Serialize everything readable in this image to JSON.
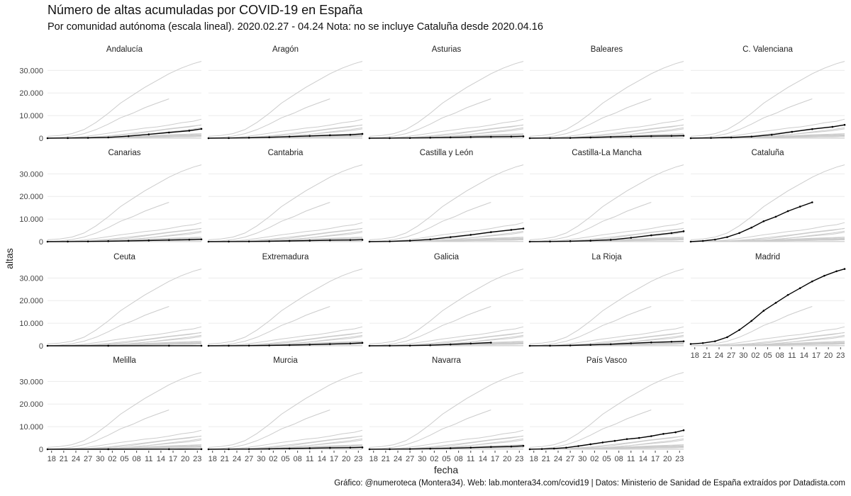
{
  "header": {
    "title": "Número de altas acumuladas por COVID-19 en España",
    "subtitle": "Por comunidad autónoma (escala lineal). 2020.02.27 - 04.24 Nota: no se incluye Cataluña desde 2020.04.16",
    "caption": "Gráfico: @numeroteca (Montera34). Web: lab.montera34.com/covid19 | Datos: Ministerio de Sanidad de España extraídos por Datadista.com"
  },
  "chart_data": {
    "type": "line",
    "title": "Número de altas acumuladas por COVID-19 en España",
    "xlabel": "fecha",
    "ylabel": "altas",
    "x_start": "2020-03-17",
    "x_end": "2020-04-24",
    "x_tick_dates": [
      "2020-03-18",
      "2020-03-21",
      "2020-03-24",
      "2020-03-27",
      "2020-03-30",
      "2020-04-02",
      "2020-04-05",
      "2020-04-08",
      "2020-04-11",
      "2020-04-14",
      "2020-04-17",
      "2020-04-20",
      "2020-04-23"
    ],
    "x_tick_labels": [
      "18",
      "21",
      "24",
      "27",
      "30",
      "02",
      "05",
      "08",
      "11",
      "14",
      "17",
      "20",
      "23"
    ],
    "ylim": [
      0,
      34500
    ],
    "y_ticks": [
      0,
      10000,
      20000,
      30000
    ],
    "y_tick_labels": [
      "0",
      "10.000",
      "20.000",
      "30.000"
    ],
    "grid": true,
    "highlight_color": "#000000",
    "background_color": "#cccccc",
    "series": [
      {
        "name": "Andalucía",
        "dates": [
          "2020-03-17",
          "2020-03-22",
          "2020-03-27",
          "2020-04-01",
          "2020-04-06",
          "2020-04-11",
          "2020-04-16",
          "2020-04-21",
          "2020-04-24"
        ],
        "values": [
          0,
          50,
          150,
          350,
          900,
          1700,
          2500,
          3300,
          4100
        ]
      },
      {
        "name": "Aragón",
        "dates": [
          "2020-03-17",
          "2020-03-22",
          "2020-03-27",
          "2020-04-01",
          "2020-04-06",
          "2020-04-11",
          "2020-04-16",
          "2020-04-21",
          "2020-04-24"
        ],
        "values": [
          0,
          50,
          200,
          400,
          700,
          1000,
          1300,
          1500,
          1900
        ]
      },
      {
        "name": "Asturias",
        "dates": [
          "2020-03-17",
          "2020-03-22",
          "2020-03-27",
          "2020-04-01",
          "2020-04-06",
          "2020-04-11",
          "2020-04-16",
          "2020-04-21",
          "2020-04-24"
        ],
        "values": [
          0,
          20,
          80,
          200,
          350,
          500,
          600,
          700,
          800
        ]
      },
      {
        "name": "Baleares",
        "dates": [
          "2020-03-17",
          "2020-03-22",
          "2020-03-27",
          "2020-04-01",
          "2020-04-06",
          "2020-04-11",
          "2020-04-16",
          "2020-04-21",
          "2020-04-24"
        ],
        "values": [
          0,
          30,
          100,
          300,
          550,
          750,
          900,
          1000,
          1100
        ]
      },
      {
        "name": "C. Valenciana",
        "dates": [
          "2020-03-17",
          "2020-03-22",
          "2020-03-27",
          "2020-04-01",
          "2020-04-06",
          "2020-04-11",
          "2020-04-16",
          "2020-04-21",
          "2020-04-24"
        ],
        "values": [
          0,
          100,
          300,
          700,
          1500,
          2800,
          4000,
          5000,
          5900
        ]
      },
      {
        "name": "Canarias",
        "dates": [
          "2020-03-17",
          "2020-03-22",
          "2020-03-27",
          "2020-04-01",
          "2020-04-06",
          "2020-04-11",
          "2020-04-16",
          "2020-04-21",
          "2020-04-24"
        ],
        "values": [
          0,
          20,
          80,
          200,
          350,
          500,
          700,
          850,
          1000
        ]
      },
      {
        "name": "Cantabria",
        "dates": [
          "2020-03-17",
          "2020-03-22",
          "2020-03-27",
          "2020-04-01",
          "2020-04-06",
          "2020-04-11",
          "2020-04-16",
          "2020-04-21",
          "2020-04-24"
        ],
        "values": [
          0,
          20,
          60,
          150,
          300,
          450,
          600,
          700,
          800
        ]
      },
      {
        "name": "Castilla y León",
        "dates": [
          "2020-03-17",
          "2020-03-22",
          "2020-03-27",
          "2020-04-01",
          "2020-04-06",
          "2020-04-11",
          "2020-04-16",
          "2020-04-21",
          "2020-04-24"
        ],
        "values": [
          0,
          100,
          400,
          1000,
          2000,
          3000,
          4200,
          5200,
          5800
        ]
      },
      {
        "name": "Castilla-La Mancha",
        "dates": [
          "2020-03-17",
          "2020-03-22",
          "2020-03-27",
          "2020-04-01",
          "2020-04-06",
          "2020-04-11",
          "2020-04-16",
          "2020-04-21",
          "2020-04-24"
        ],
        "values": [
          0,
          50,
          200,
          400,
          800,
          1700,
          2800,
          3800,
          4600
        ]
      },
      {
        "name": "Cataluña",
        "dates": [
          "2020-03-17",
          "2020-03-20",
          "2020-03-23",
          "2020-03-26",
          "2020-03-29",
          "2020-04-01",
          "2020-04-04",
          "2020-04-07",
          "2020-04-10",
          "2020-04-13",
          "2020-04-16"
        ],
        "values": [
          0,
          300,
          900,
          2000,
          3800,
          6200,
          9000,
          11000,
          13500,
          15500,
          17400
        ]
      },
      {
        "name": "Ceuta",
        "dates": [
          "2020-03-17",
          "2020-04-01",
          "2020-04-16",
          "2020-04-24"
        ],
        "values": [
          0,
          5,
          20,
          40
        ]
      },
      {
        "name": "Extremadura",
        "dates": [
          "2020-03-17",
          "2020-03-22",
          "2020-03-27",
          "2020-04-01",
          "2020-04-06",
          "2020-04-11",
          "2020-04-16",
          "2020-04-21",
          "2020-04-24"
        ],
        "values": [
          0,
          20,
          60,
          150,
          300,
          500,
          750,
          1000,
          1300
        ]
      },
      {
        "name": "Galicia",
        "dates": [
          "2020-03-17",
          "2020-03-22",
          "2020-03-27",
          "2020-04-01",
          "2020-04-06",
          "2020-04-11",
          "2020-04-16"
        ],
        "values": [
          0,
          20,
          80,
          250,
          600,
          1000,
          1400
        ]
      },
      {
        "name": "La Rioja",
        "dates": [
          "2020-03-17",
          "2020-03-22",
          "2020-03-27",
          "2020-04-01",
          "2020-04-06",
          "2020-04-11",
          "2020-04-16",
          "2020-04-21",
          "2020-04-24"
        ],
        "values": [
          0,
          30,
          150,
          400,
          700,
          1100,
          1500,
          1800,
          2000
        ]
      },
      {
        "name": "Madrid",
        "dates": [
          "2020-03-17",
          "2020-03-20",
          "2020-03-23",
          "2020-03-26",
          "2020-03-29",
          "2020-04-01",
          "2020-04-04",
          "2020-04-07",
          "2020-04-10",
          "2020-04-13",
          "2020-04-16",
          "2020-04-19",
          "2020-04-22",
          "2020-04-24"
        ],
        "values": [
          800,
          1200,
          2000,
          3800,
          7000,
          11000,
          15500,
          19000,
          22500,
          25500,
          28500,
          31000,
          33000,
          34000
        ]
      },
      {
        "name": "Melilla",
        "dates": [
          "2020-03-17",
          "2020-04-01",
          "2020-04-16",
          "2020-04-24"
        ],
        "values": [
          0,
          5,
          20,
          50
        ]
      },
      {
        "name": "Murcia",
        "dates": [
          "2020-03-17",
          "2020-03-22",
          "2020-03-27",
          "2020-04-01",
          "2020-04-06",
          "2020-04-11",
          "2020-04-16",
          "2020-04-21",
          "2020-04-24"
        ],
        "values": [
          0,
          20,
          60,
          150,
          300,
          450,
          600,
          700,
          800
        ]
      },
      {
        "name": "Navarra",
        "dates": [
          "2020-03-17",
          "2020-03-22",
          "2020-03-27",
          "2020-04-01",
          "2020-04-06",
          "2020-04-11",
          "2020-04-16",
          "2020-04-21",
          "2020-04-24"
        ],
        "values": [
          0,
          30,
          100,
          250,
          450,
          700,
          1000,
          1200,
          1500
        ]
      },
      {
        "name": "País Vasco",
        "dates": [
          "2020-03-17",
          "2020-03-20",
          "2020-03-23",
          "2020-03-26",
          "2020-03-29",
          "2020-04-01",
          "2020-04-04",
          "2020-04-07",
          "2020-04-10",
          "2020-04-13",
          "2020-04-16",
          "2020-04-19",
          "2020-04-22",
          "2020-04-24"
        ],
        "values": [
          0,
          100,
          300,
          700,
          1400,
          2200,
          3000,
          3700,
          4500,
          5000,
          5800,
          6800,
          7500,
          8400
        ]
      }
    ]
  }
}
